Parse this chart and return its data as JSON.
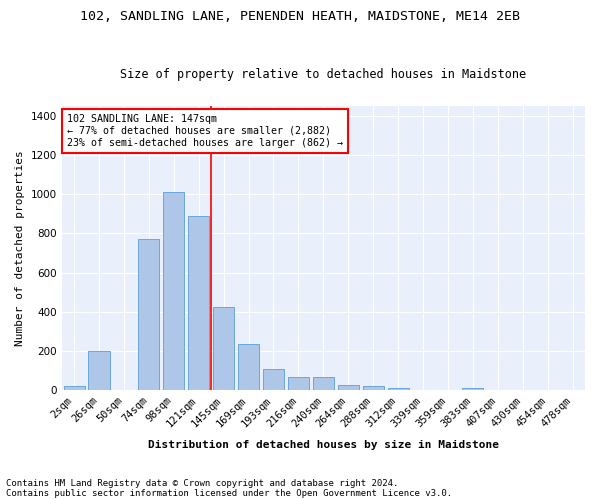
{
  "title1": "102, SANDLING LANE, PENENDEN HEATH, MAIDSTONE, ME14 2EB",
  "title2": "Size of property relative to detached houses in Maidstone",
  "xlabel": "Distribution of detached houses by size in Maidstone",
  "ylabel": "Number of detached properties",
  "categories": [
    "2sqm",
    "26sqm",
    "50sqm",
    "74sqm",
    "98sqm",
    "121sqm",
    "145sqm",
    "169sqm",
    "193sqm",
    "216sqm",
    "240sqm",
    "264sqm",
    "288sqm",
    "312sqm",
    "339sqm",
    "359sqm",
    "383sqm",
    "407sqm",
    "430sqm",
    "454sqm",
    "478sqm"
  ],
  "values": [
    20,
    200,
    0,
    770,
    1010,
    890,
    425,
    235,
    110,
    70,
    70,
    28,
    22,
    10,
    0,
    0,
    10,
    0,
    0,
    0,
    0
  ],
  "bar_color": "#aec6e8",
  "bar_edge_color": "#5a9fd4",
  "vline_color": "red",
  "annotation_text": "102 SANDLING LANE: 147sqm\n← 77% of detached houses are smaller (2,882)\n23% of semi-detached houses are larger (862) →",
  "annotation_box_color": "white",
  "annotation_box_edge_color": "red",
  "ylim": [
    0,
    1450
  ],
  "yticks": [
    0,
    200,
    400,
    600,
    800,
    1000,
    1200,
    1400
  ],
  "footnote1": "Contains HM Land Registry data © Crown copyright and database right 2024.",
  "footnote2": "Contains public sector information licensed under the Open Government Licence v3.0.",
  "plot_bg_color": "#eaf0fb",
  "title1_fontsize": 9.5,
  "title2_fontsize": 8.5,
  "xlabel_fontsize": 8,
  "ylabel_fontsize": 8,
  "tick_fontsize": 7.5,
  "footnote_fontsize": 6.5,
  "vline_index": 6
}
